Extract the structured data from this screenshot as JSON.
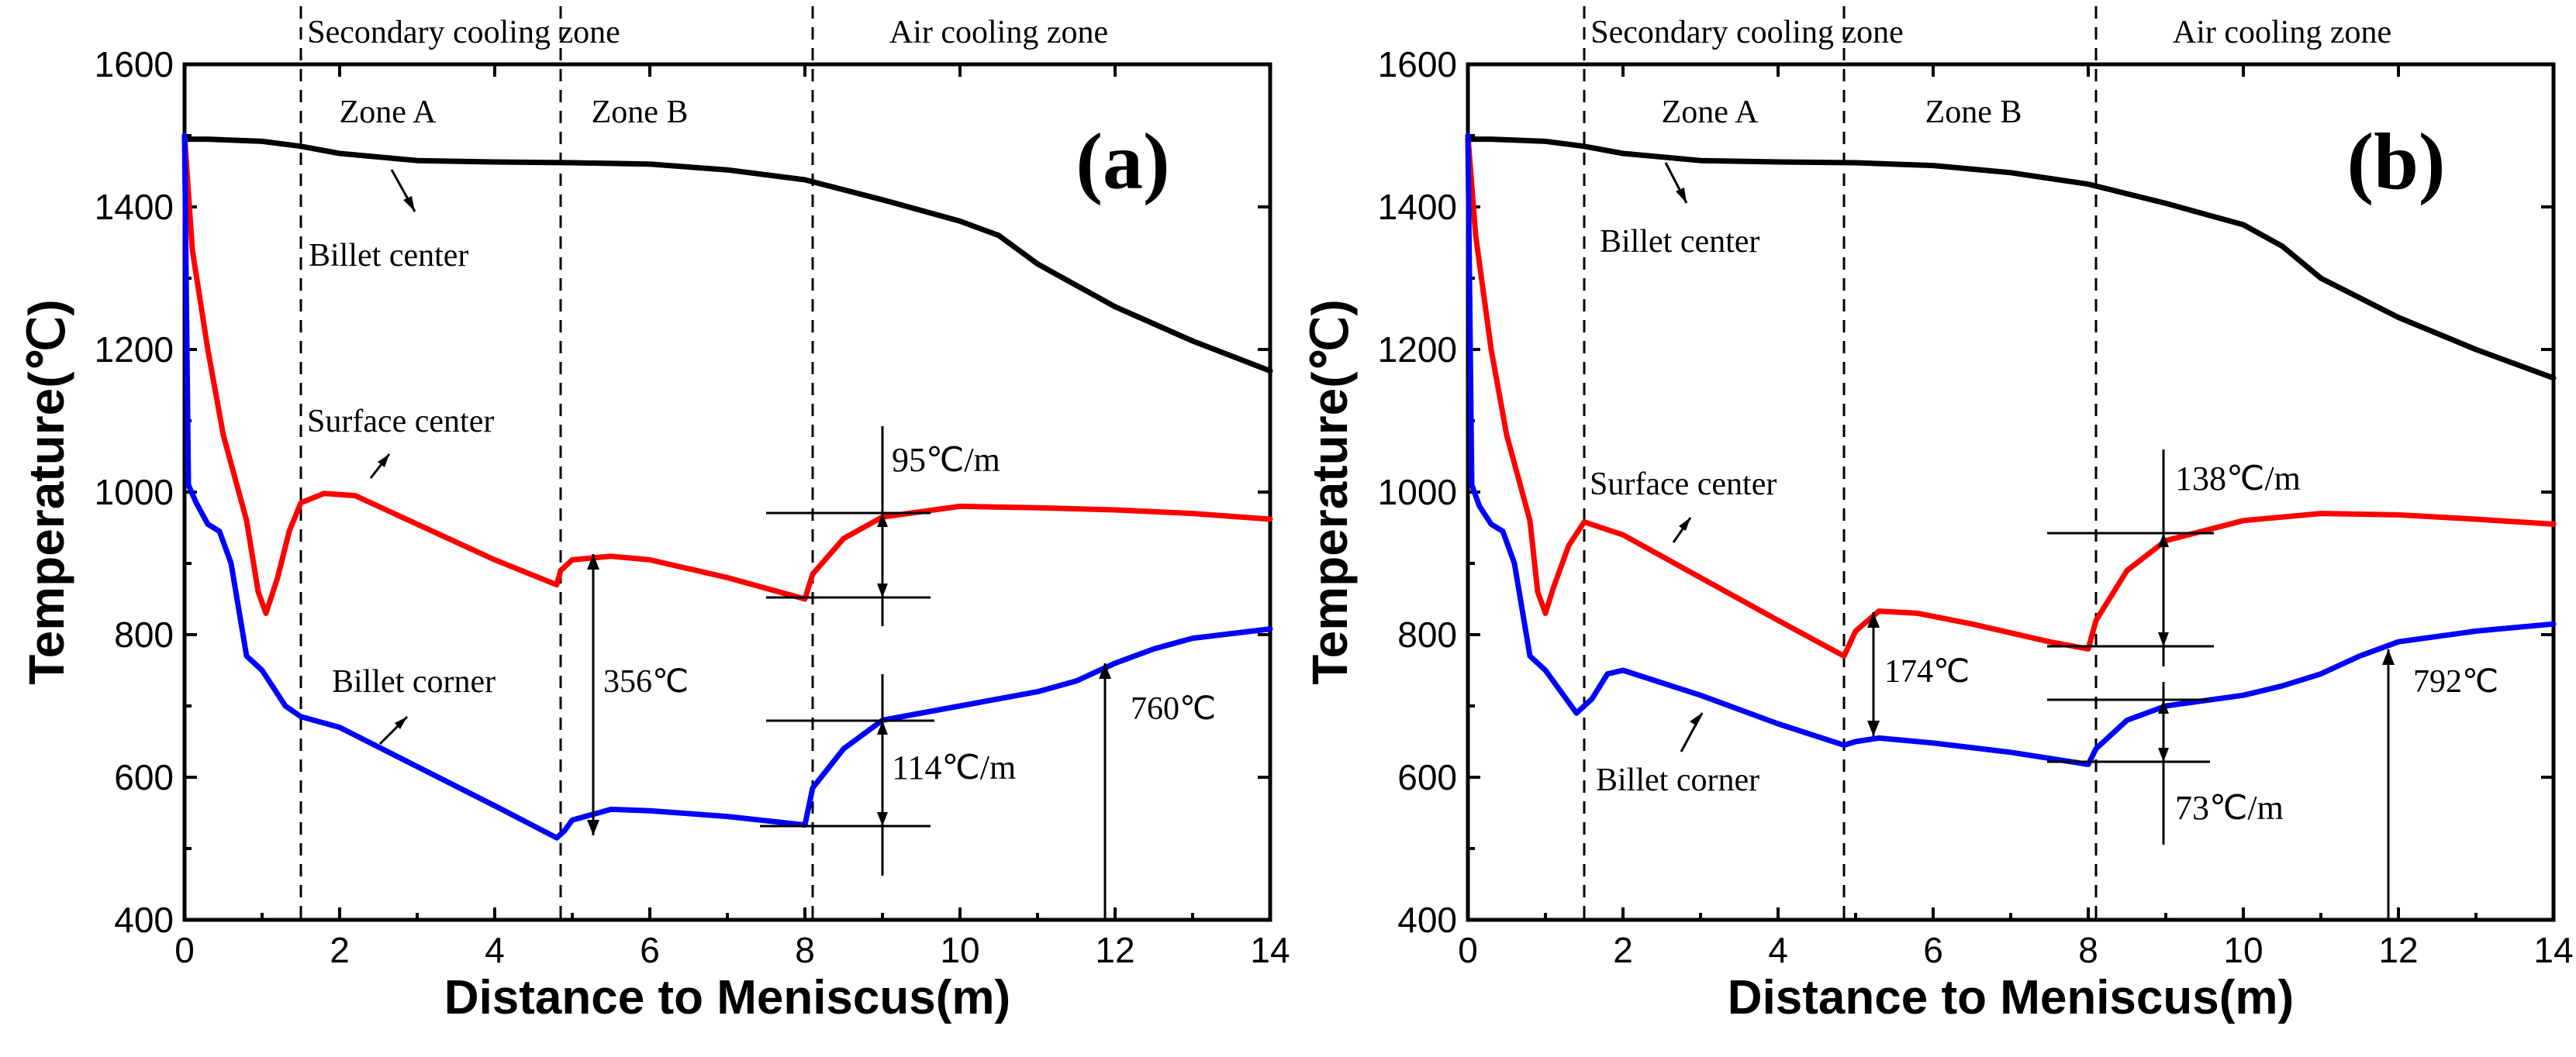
{
  "colors": {
    "billet_center": "#000000",
    "surface_center": "#ff0000",
    "billet_corner": "#0000ff",
    "axes": "#000000"
  },
  "chart_data": [
    {
      "type": "line",
      "panel_label": "(a)",
      "xlabel": "Distance to Meniscus(m)",
      "ylabel": "Temperature(℃)",
      "xlim": [
        0,
        14
      ],
      "ylim": [
        400,
        1600
      ],
      "xticks": [
        0,
        2,
        4,
        6,
        8,
        10,
        12,
        14
      ],
      "yticks": [
        400,
        600,
        800,
        1000,
        1200,
        1400,
        1600
      ],
      "zone_boundaries": [
        1.5,
        4.85,
        8.1
      ],
      "zone_headers": [
        "Secondary cooling zone",
        "Air cooling zone"
      ],
      "zone_labels": [
        "Zone A",
        "Zone B"
      ],
      "series": [
        {
          "name": "Billet center",
          "color_key": "billet_center",
          "x": [
            0.0,
            0.3,
            1.0,
            1.5,
            2.0,
            3.0,
            4.0,
            5.0,
            6.0,
            7.0,
            8.0,
            9.0,
            10.0,
            10.5,
            11.0,
            12.0,
            13.0,
            14.0
          ],
          "y": [
            1495,
            1495,
            1492,
            1485,
            1475,
            1465,
            1463,
            1462,
            1460,
            1452,
            1438,
            1410,
            1380,
            1360,
            1320,
            1260,
            1212,
            1170
          ]
        },
        {
          "name": "Surface center",
          "color_key": "surface_center",
          "x": [
            0.0,
            0.1,
            0.3,
            0.5,
            0.8,
            0.95,
            1.05,
            1.2,
            1.35,
            1.5,
            1.8,
            2.2,
            3.0,
            4.0,
            4.8,
            4.85,
            5.0,
            5.5,
            6.0,
            7.0,
            8.0,
            8.1,
            8.5,
            9.0,
            10.0,
            11.0,
            12.0,
            13.0,
            14.0
          ],
          "y": [
            1500,
            1340,
            1200,
            1080,
            960,
            860,
            830,
            880,
            945,
            985,
            998,
            995,
            955,
            905,
            870,
            890,
            905,
            910,
            905,
            880,
            850,
            885,
            935,
            965,
            980,
            978,
            975,
            970,
            962
          ]
        },
        {
          "name": "Billet corner",
          "color_key": "billet_corner",
          "x": [
            0.0,
            0.05,
            0.15,
            0.3,
            0.45,
            0.6,
            0.8,
            1.0,
            1.3,
            1.5,
            2.0,
            3.0,
            4.0,
            4.8,
            4.9,
            5.0,
            5.5,
            6.0,
            7.0,
            8.0,
            8.1,
            8.5,
            9.0,
            10.0,
            11.0,
            11.5,
            12.0,
            12.5,
            13.0,
            14.0
          ],
          "y": [
            1500,
            1010,
            985,
            955,
            945,
            900,
            770,
            750,
            700,
            685,
            670,
            615,
            560,
            515,
            525,
            540,
            555,
            553,
            545,
            533,
            585,
            640,
            680,
            700,
            720,
            735,
            760,
            780,
            795,
            808
          ]
        }
      ],
      "curve_labels": {
        "center": "Billet center",
        "surface": "Surface center",
        "corner": "Billet corner"
      },
      "annotations": {
        "delta_temp": "356℃",
        "surface_gradient": "95℃/m",
        "corner_gradient": "114℃/m",
        "corner_temp": "760℃"
      }
    },
    {
      "type": "line",
      "panel_label": "(b)",
      "xlabel": "Distance to Meniscus(m)",
      "ylabel": "Temperature(℃)",
      "xlim": [
        0,
        14
      ],
      "ylim": [
        400,
        1600
      ],
      "xticks": [
        0,
        2,
        4,
        6,
        8,
        10,
        12,
        14
      ],
      "yticks": [
        400,
        600,
        800,
        1000,
        1200,
        1400,
        1600
      ],
      "zone_boundaries": [
        1.5,
        4.85,
        8.1
      ],
      "zone_headers": [
        "Secondary cooling zone",
        "Air cooling zone"
      ],
      "zone_labels": [
        "Zone A",
        "Zone B"
      ],
      "series": [
        {
          "name": "Billet center",
          "color_key": "billet_center",
          "x": [
            0.0,
            0.3,
            1.0,
            1.5,
            2.0,
            3.0,
            4.0,
            5.0,
            6.0,
            7.0,
            8.0,
            9.0,
            9.5,
            10.0,
            10.5,
            11.0,
            12.0,
            13.0,
            14.0
          ],
          "y": [
            1495,
            1495,
            1492,
            1485,
            1475,
            1465,
            1463,
            1462,
            1458,
            1448,
            1432,
            1405,
            1390,
            1375,
            1345,
            1300,
            1245,
            1200,
            1160
          ]
        },
        {
          "name": "Surface center",
          "color_key": "surface_center",
          "x": [
            0.0,
            0.1,
            0.3,
            0.5,
            0.8,
            0.9,
            1.0,
            1.1,
            1.3,
            1.5,
            2.0,
            3.0,
            4.0,
            4.85,
            5.0,
            5.3,
            5.8,
            6.5,
            7.5,
            8.0,
            8.1,
            8.5,
            9.0,
            10.0,
            11.0,
            12.0,
            13.0,
            14.0
          ],
          "y": [
            1500,
            1360,
            1200,
            1080,
            960,
            860,
            830,
            865,
            925,
            958,
            940,
            880,
            820,
            770,
            805,
            833,
            830,
            815,
            790,
            780,
            820,
            890,
            932,
            960,
            970,
            968,
            962,
            955
          ]
        },
        {
          "name": "Billet corner",
          "color_key": "billet_corner",
          "x": [
            0.0,
            0.05,
            0.15,
            0.3,
            0.45,
            0.6,
            0.8,
            1.0,
            1.2,
            1.4,
            1.6,
            1.8,
            2.0,
            3.0,
            4.0,
            4.85,
            5.0,
            5.3,
            6.0,
            7.0,
            8.0,
            8.1,
            8.5,
            9.0,
            10.0,
            10.5,
            11.0,
            11.5,
            12.0,
            13.0,
            14.0
          ],
          "y": [
            1500,
            1010,
            980,
            955,
            945,
            900,
            770,
            750,
            720,
            690,
            710,
            745,
            750,
            715,
            675,
            645,
            650,
            655,
            648,
            635,
            618,
            640,
            680,
            700,
            715,
            728,
            745,
            770,
            790,
            805,
            815
          ]
        }
      ],
      "curve_labels": {
        "center": "Billet center",
        "surface": "Surface center",
        "corner": "Billet corner"
      },
      "annotations": {
        "delta_temp": "174℃",
        "surface_gradient": "138℃/m",
        "corner_gradient": "73℃/m",
        "corner_temp": "792℃"
      }
    }
  ]
}
